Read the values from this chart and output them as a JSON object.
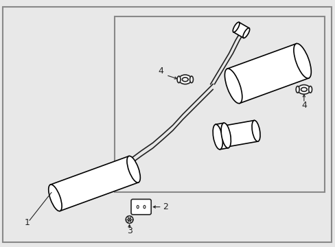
{
  "bg_color": "#f0f0f0",
  "line_color": "#222222",
  "fill_color": "#ffffff",
  "border_color": "#888888",
  "title": "",
  "lw": 1.2,
  "fig_bg": "#e8e8e8"
}
